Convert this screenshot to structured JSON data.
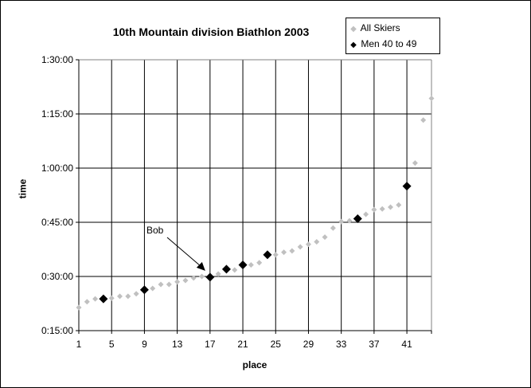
{
  "chart_data": {
    "type": "scatter",
    "title": "10th Mountain division Biathlon 2003",
    "xlabel": "place",
    "ylabel": "time",
    "xlim": [
      1,
      44
    ],
    "ylim": [
      "0:15:00",
      "1:30:00"
    ],
    "ylim_minutes": [
      15,
      90
    ],
    "x_ticks": [
      "1",
      "5",
      "9",
      "13",
      "17",
      "21",
      "25",
      "29",
      "33",
      "37",
      "41"
    ],
    "y_ticks": [
      "0:15:00",
      "0:30:00",
      "0:45:00",
      "1:00:00",
      "1:15:00",
      "1:30:00"
    ],
    "grid": true,
    "legend_position": "top-right",
    "legend": [
      "All Skiers",
      "Men 40 to 49"
    ],
    "series": [
      {
        "name": "All Skiers",
        "color": "#c0c0c0",
        "marker": "diamond-small",
        "x": [
          1,
          2,
          3,
          4,
          5,
          6,
          7,
          8,
          9,
          10,
          11,
          12,
          13,
          14,
          15,
          16,
          17,
          18,
          19,
          20,
          21,
          22,
          23,
          24,
          25,
          26,
          27,
          28,
          29,
          30,
          31,
          32,
          33,
          34,
          35,
          36,
          37,
          38,
          39,
          40,
          41,
          42,
          43,
          44
        ],
        "y_minutes": [
          21.4,
          23.0,
          23.8,
          23.8,
          24.0,
          24.5,
          24.5,
          25.2,
          26.3,
          26.7,
          27.8,
          27.8,
          28.5,
          28.9,
          29.6,
          30.0,
          29.8,
          30.7,
          32.0,
          31.8,
          33.2,
          33.2,
          33.8,
          36.0,
          36.0,
          36.7,
          37.1,
          38.2,
          38.9,
          39.6,
          40.9,
          43.4,
          45.2,
          45.4,
          46.0,
          47.2,
          48.5,
          48.7,
          49.2,
          49.8,
          55.0,
          61.4,
          73.3,
          79.3
        ]
      },
      {
        "name": "Men 40 to 49",
        "color": "#000000",
        "marker": "diamond-large",
        "x": [
          4,
          9,
          17,
          19,
          21,
          24,
          35,
          41
        ],
        "y_minutes": [
          23.8,
          26.3,
          29.8,
          32.0,
          33.2,
          36.0,
          46.0,
          55.0
        ]
      }
    ],
    "annotations": [
      {
        "text": "Bob",
        "points_to": {
          "x": 17,
          "y_minutes": 29.8
        }
      }
    ]
  },
  "legend": {
    "items": [
      {
        "label": "All Skiers",
        "marker": "◆",
        "color": "#c0c0c0"
      },
      {
        "label": "Men 40 to 49",
        "marker": "◆",
        "color": "#000000"
      }
    ]
  },
  "annotation": {
    "label": "Bob"
  }
}
